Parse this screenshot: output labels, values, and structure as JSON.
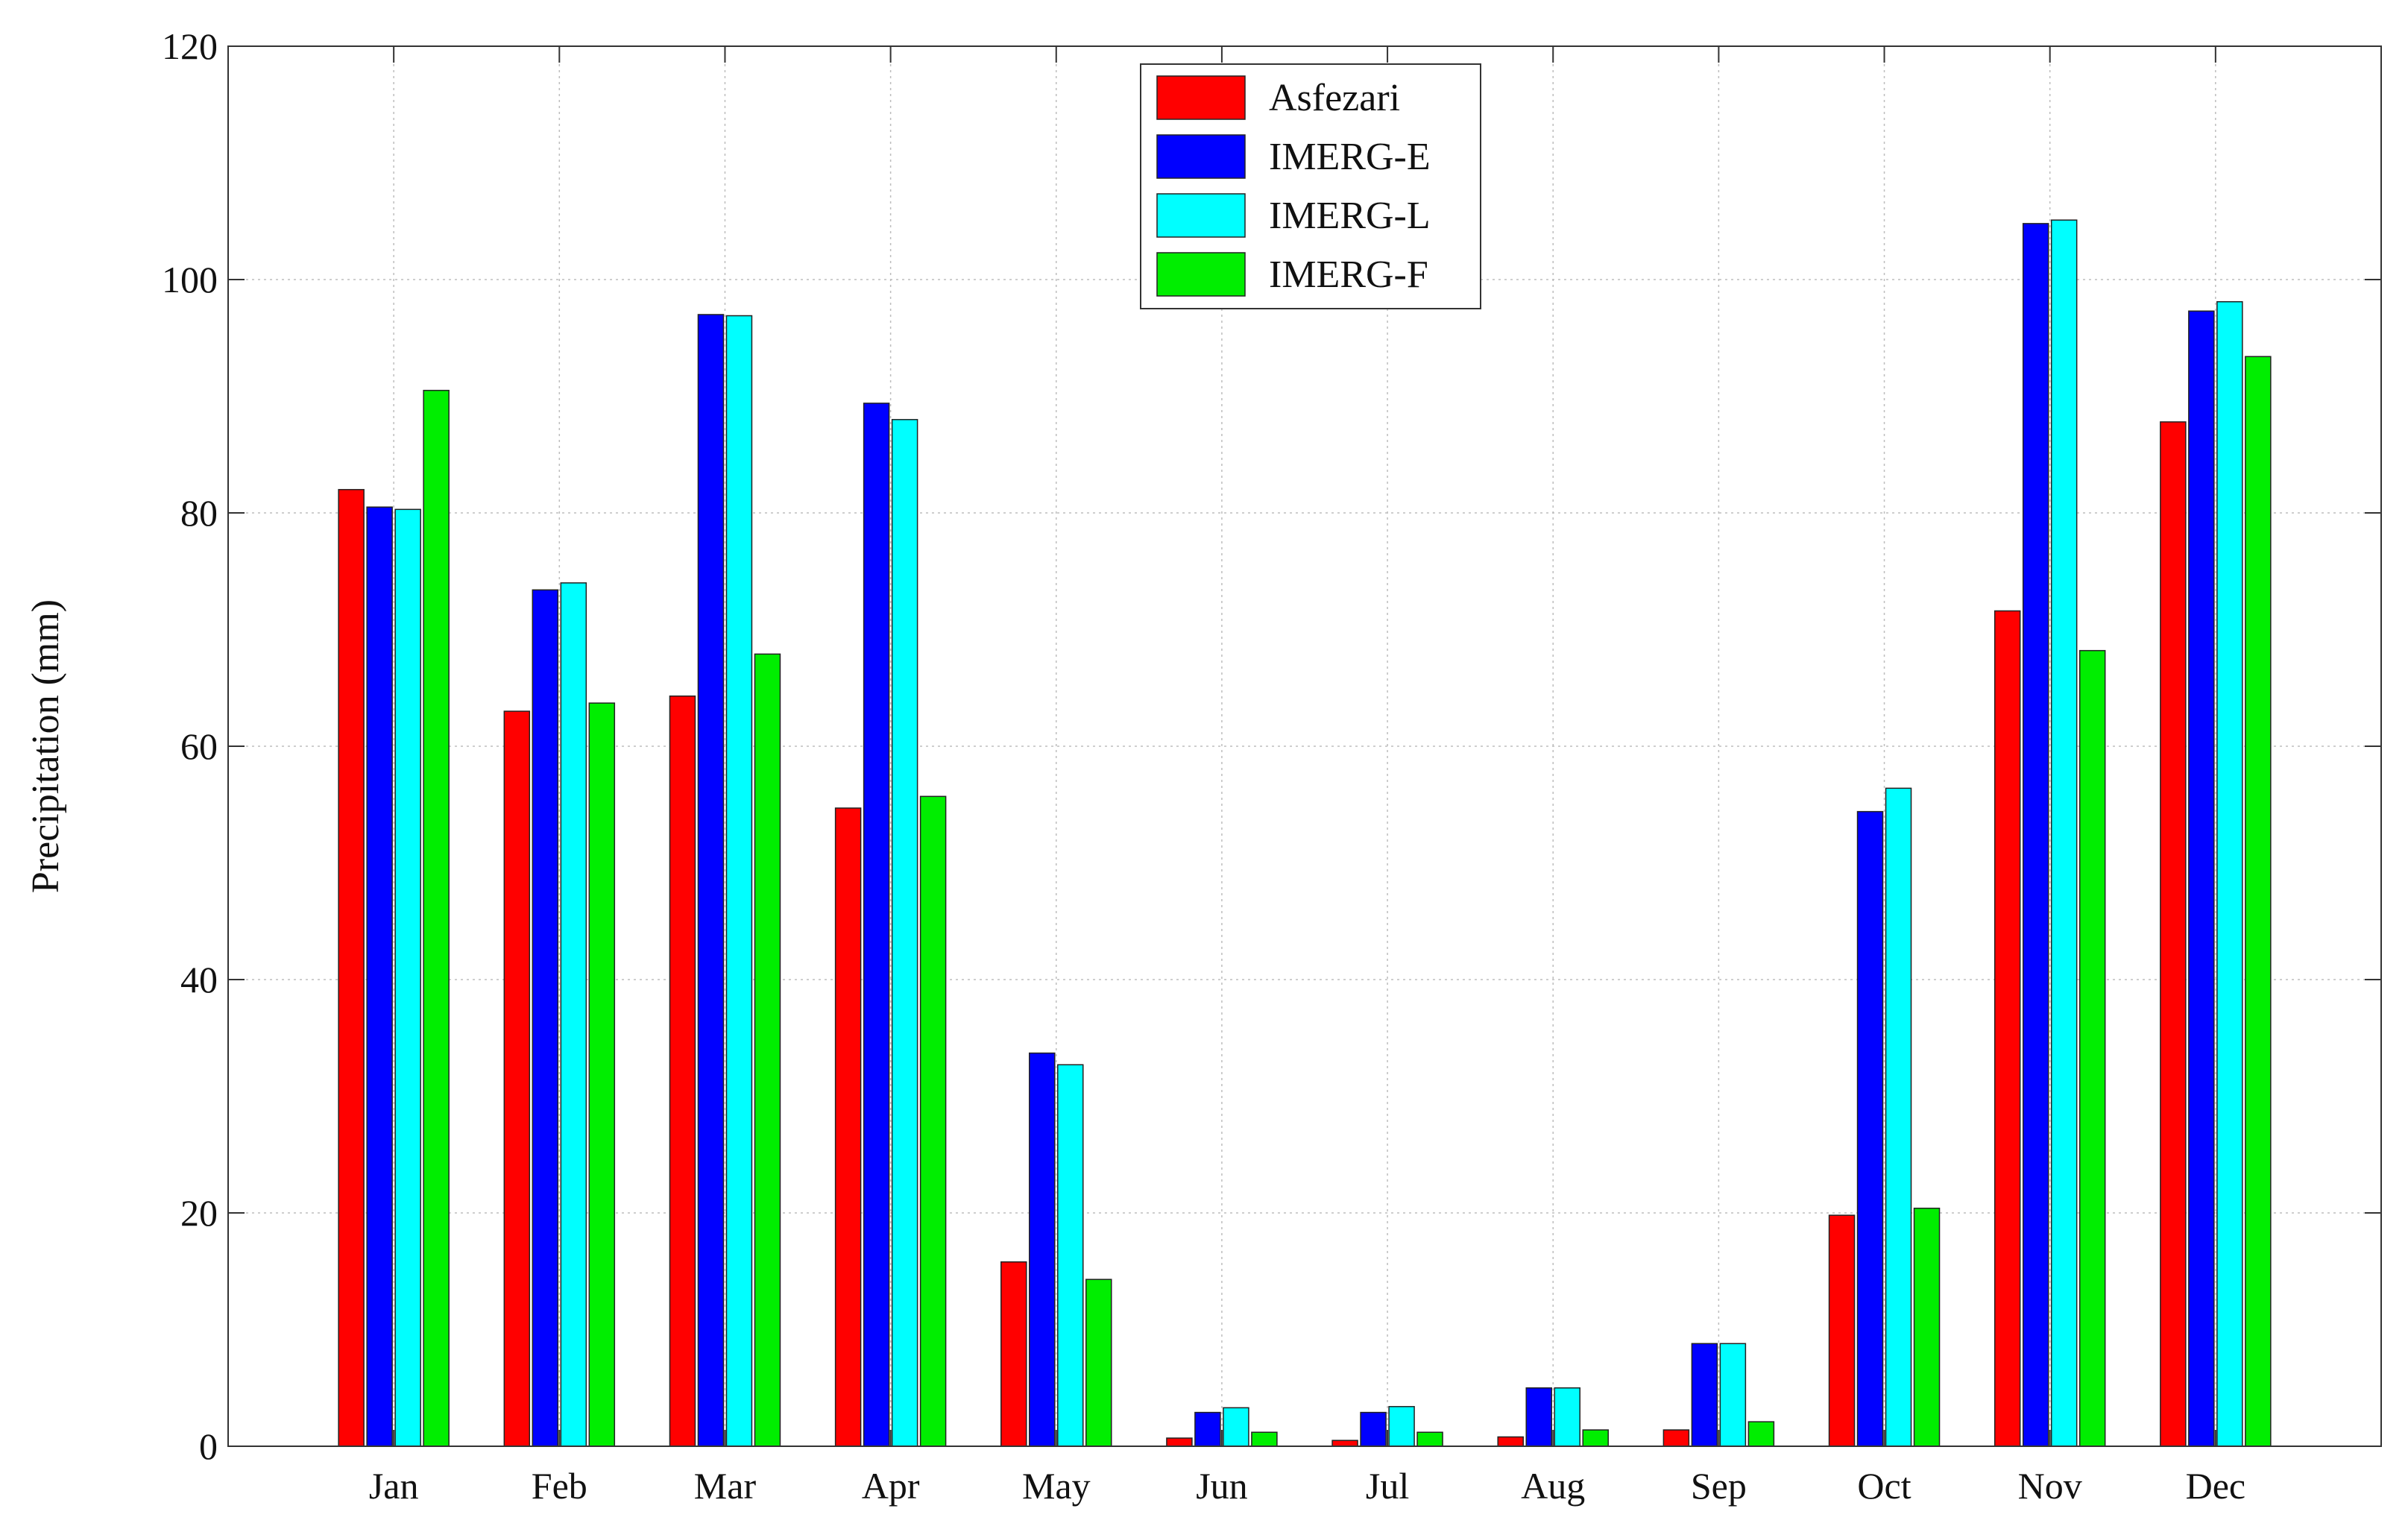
{
  "chart_data": {
    "type": "bar",
    "title": "",
    "xlabel": "",
    "ylabel": "Precipitation (mm)",
    "ylim": [
      0,
      120
    ],
    "yticks": [
      "0",
      "20",
      "40",
      "60",
      "80",
      "100",
      "120"
    ],
    "grid": true,
    "legend_position": "top-center",
    "categories": [
      "Jan",
      "Feb",
      "Mar",
      "Apr",
      "May",
      "Jun",
      "Jul",
      "Aug",
      "Sep",
      "Oct",
      "Nov",
      "Dec"
    ],
    "series": [
      {
        "name": "Asfezari",
        "color": "#ff0000",
        "values": [
          82.0,
          63.0,
          64.3,
          54.7,
          15.8,
          0.7,
          0.5,
          0.8,
          1.4,
          19.8,
          71.6,
          87.8
        ]
      },
      {
        "name": "IMERG-E",
        "color": "#0000ff",
        "values": [
          80.5,
          73.4,
          97.0,
          89.4,
          33.7,
          2.9,
          2.9,
          5.0,
          8.8,
          54.4,
          104.8,
          97.3
        ]
      },
      {
        "name": "IMERG-L",
        "color": "#00ffff",
        "values": [
          80.3,
          74.0,
          96.9,
          88.0,
          32.7,
          3.3,
          3.4,
          5.0,
          8.8,
          56.4,
          105.1,
          98.1
        ]
      },
      {
        "name": "IMERG-F",
        "color": "#00ee00",
        "values": [
          90.5,
          63.7,
          67.9,
          55.7,
          14.3,
          1.2,
          1.2,
          1.4,
          2.1,
          20.4,
          68.2,
          93.4
        ]
      }
    ]
  }
}
